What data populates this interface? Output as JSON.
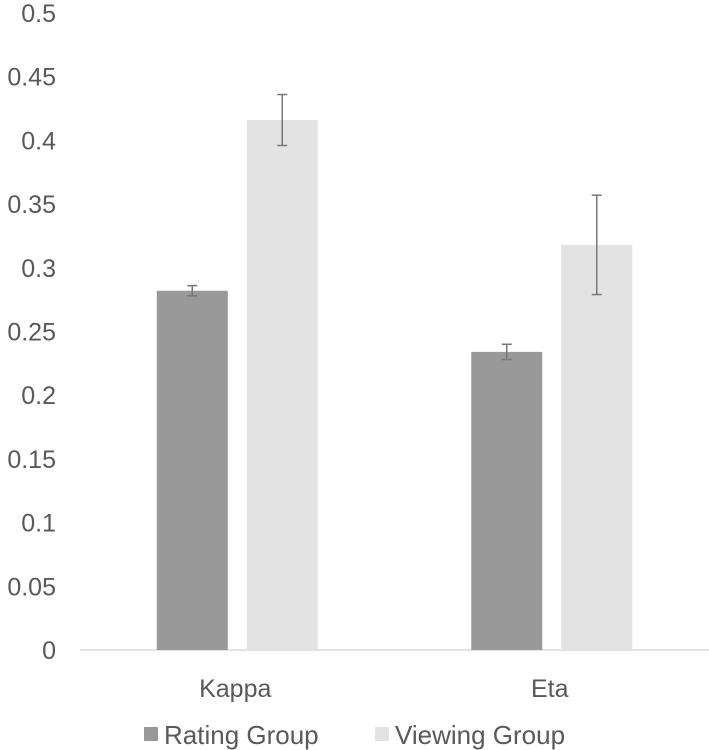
{
  "chart_data": {
    "type": "bar",
    "title": "",
    "xlabel": "",
    "ylabel": "",
    "categories": [
      "Kappa",
      "Eta"
    ],
    "series": [
      {
        "name": "Rating Group",
        "color": "#999999",
        "values": [
          0.282,
          0.234
        ],
        "error": [
          0.004,
          0.006
        ]
      },
      {
        "name": "Viewing Group",
        "color": "#e3e3e3",
        "values": [
          0.416,
          0.318
        ],
        "error": [
          0.02,
          0.039
        ]
      }
    ],
    "ylim": [
      0,
      0.5
    ],
    "yticks": [
      "0",
      "0.05",
      "0.1",
      "0.15",
      "0.2",
      "0.25",
      "0.3",
      "0.35",
      "0.4",
      "0.45",
      "0.5"
    ],
    "grid": false,
    "legend": "bottom",
    "axis_color": "#d9d9d9",
    "text_color": "#595959",
    "error_bar_color": "#777777"
  }
}
